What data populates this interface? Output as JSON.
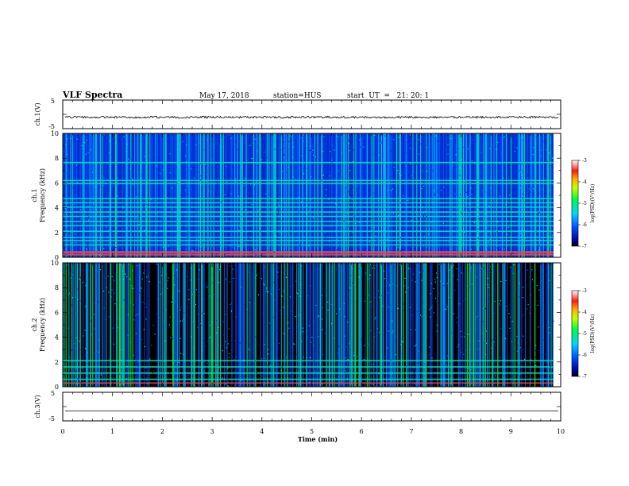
{
  "header": {
    "title": "VLF Spectra",
    "date": "May 17, 2018",
    "station": "station=HUS",
    "start": "start  UT  =   21: 20: 1"
  },
  "chart_data": [
    {
      "type": "line",
      "name": "ch1-waveform",
      "ylabel": "ch.1(V)",
      "ylim": [
        -5,
        5
      ],
      "yticks": [
        "5",
        "-5"
      ],
      "xlim": [
        0,
        10
      ],
      "series": [
        {
          "description_level": -1.0,
          "noise_amplitude": 0.35
        }
      ]
    },
    {
      "type": "heatmap",
      "name": "ch1-spectrogram",
      "ylabel_top": "ch.1",
      "ylabel": "Frequency (kHz)",
      "ylim": [
        0,
        10
      ],
      "yticks": [
        "10",
        "8",
        "6",
        "4",
        "2",
        "0"
      ],
      "xlim": [
        0,
        10
      ],
      "data_end_min": 9.85,
      "horizontal_lines_khz": [
        0.2,
        0.35,
        0.45,
        1.0,
        1.35,
        1.6,
        2.1,
        2.55,
        2.9,
        3.3,
        3.65,
        4.05,
        4.4,
        4.75,
        5.95,
        6.2,
        7.65
      ],
      "background_level": -6.4,
      "colorbar": {
        "min": -7,
        "max": -3,
        "ticks": [
          "-3",
          "-4",
          "-5",
          "-6",
          "-7"
        ],
        "label": "log(PSD)(V²/Hz)"
      }
    },
    {
      "type": "heatmap",
      "name": "ch2-spectrogram",
      "ylabel_top": "ch.2",
      "ylabel": "Frequency (kHz)",
      "ylim": [
        0,
        10
      ],
      "yticks": [
        "10",
        "8",
        "6",
        "4",
        "2",
        "0"
      ],
      "xlim": [
        0,
        10
      ],
      "data_end_min": 9.85,
      "horizontal_lines_khz": [
        0.3,
        0.6,
        1.1,
        1.6,
        2.1
      ],
      "background_level": -7.0,
      "colorbar": {
        "min": -7,
        "max": -3,
        "ticks": [
          "-3",
          "-4",
          "-5",
          "-6",
          "-7"
        ],
        "label": "log(PSD)(V²/Hz)"
      }
    },
    {
      "type": "line",
      "name": "ch3-waveform",
      "ylabel": "ch.3(V)",
      "ylim": [
        -5,
        5
      ],
      "yticks": [
        "5",
        "-5"
      ],
      "xlim": [
        0,
        10
      ],
      "xlabel": "Time (min)",
      "xticks": [
        "0",
        "1",
        "2",
        "3",
        "4",
        "5",
        "6",
        "7",
        "8",
        "9",
        "10"
      ],
      "series": [
        {
          "description_level": -1.5,
          "noise_amplitude": 0
        }
      ]
    }
  ]
}
